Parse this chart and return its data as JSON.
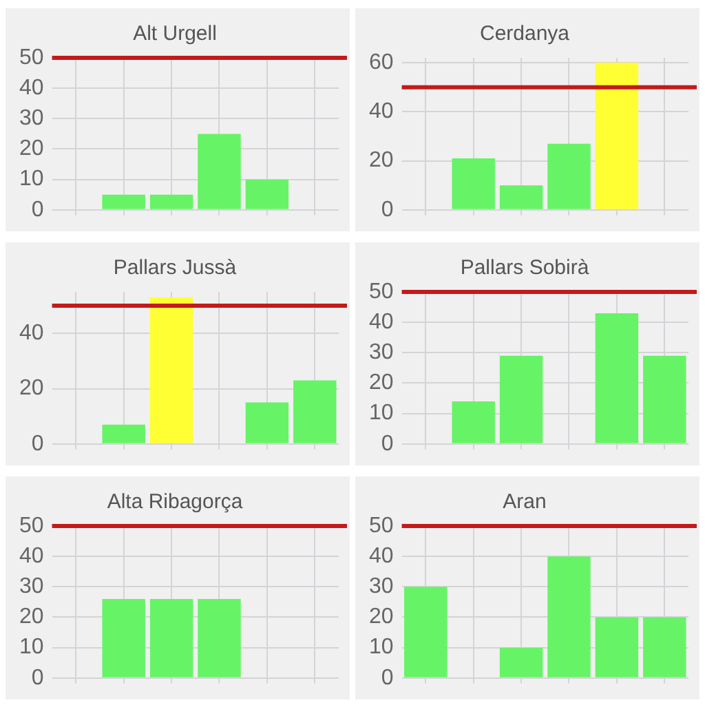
{
  "chart_data": [
    {
      "type": "bar",
      "title": "Alt Urgell",
      "categories": [
        null,
        null,
        null,
        null,
        null,
        null
      ],
      "values": [
        null,
        5,
        5,
        25,
        10,
        null
      ],
      "colors": [
        "#66f466",
        "#66f466",
        "#66f466",
        "#66f466",
        "#66f466",
        "#66f466"
      ],
      "ylim": [
        0,
        50
      ],
      "yticks": [
        0,
        10,
        20,
        30,
        40,
        50
      ],
      "grid": true,
      "tick_labels": "y",
      "ref_lines": [
        {
          "axis": "y",
          "value": 50,
          "color": "#c41a1a"
        }
      ]
    },
    {
      "type": "bar",
      "title": "Cerdanya",
      "categories": [
        null,
        null,
        null,
        null,
        null,
        null
      ],
      "values": [
        null,
        21,
        10,
        27,
        60,
        null
      ],
      "colors": [
        "#66f466",
        "#66f466",
        "#66f466",
        "#66f466",
        "#ffff33",
        "#66f466"
      ],
      "ylim": [
        0,
        62
      ],
      "yticks": [
        0,
        20,
        40,
        60
      ],
      "grid": true,
      "tick_labels": "y",
      "ref_lines": [
        {
          "axis": "y",
          "value": 50,
          "color": "#c41a1a"
        }
      ]
    },
    {
      "type": "bar",
      "title": "Pallars Jussà",
      "categories": [
        null,
        null,
        null,
        null,
        null,
        null
      ],
      "values": [
        null,
        7,
        53,
        null,
        15,
        23
      ],
      "colors": [
        "#66f466",
        "#66f466",
        "#ffff33",
        "#66f466",
        "#66f466",
        "#66f466"
      ],
      "ylim": [
        0,
        55
      ],
      "yticks": [
        0,
        20,
        40
      ],
      "grid": true,
      "tick_labels": "y",
      "ref_lines": [
        {
          "axis": "y",
          "value": 50,
          "color": "#c41a1a"
        }
      ]
    },
    {
      "type": "bar",
      "title": "Pallars Sobirà",
      "categories": [
        null,
        null,
        null,
        null,
        null,
        null
      ],
      "values": [
        null,
        14,
        29,
        null,
        43,
        29
      ],
      "colors": [
        "#66f466",
        "#66f466",
        "#66f466",
        "#66f466",
        "#66f466",
        "#66f466"
      ],
      "ylim": [
        0,
        50
      ],
      "yticks": [
        0,
        10,
        20,
        30,
        40,
        50
      ],
      "grid": true,
      "tick_labels": "y",
      "ref_lines": [
        {
          "axis": "y",
          "value": 50,
          "color": "#c41a1a"
        }
      ]
    },
    {
      "type": "bar",
      "title": "Alta Ribagorça",
      "categories": [
        null,
        null,
        null,
        null,
        null,
        null
      ],
      "values": [
        null,
        26,
        26,
        26,
        null,
        null
      ],
      "colors": [
        "#66f466",
        "#66f466",
        "#66f466",
        "#66f466",
        "#66f466",
        "#66f466"
      ],
      "ylim": [
        0,
        50
      ],
      "yticks": [
        0,
        10,
        20,
        30,
        40,
        50
      ],
      "grid": true,
      "tick_labels": "y",
      "ref_lines": [
        {
          "axis": "y",
          "value": 50,
          "color": "#c41a1a"
        }
      ]
    },
    {
      "type": "bar",
      "title": "Aran",
      "categories": [
        null,
        null,
        null,
        null,
        null,
        null
      ],
      "values": [
        30,
        null,
        10,
        40,
        20,
        20
      ],
      "colors": [
        "#66f466",
        "#66f466",
        "#66f466",
        "#66f466",
        "#66f466",
        "#66f466"
      ],
      "ylim": [
        0,
        50
      ],
      "yticks": [
        0,
        10,
        20,
        30,
        40,
        50
      ],
      "grid": true,
      "tick_labels": "y",
      "ref_lines": [
        {
          "axis": "y",
          "value": 50,
          "color": "#c41a1a"
        }
      ]
    }
  ]
}
